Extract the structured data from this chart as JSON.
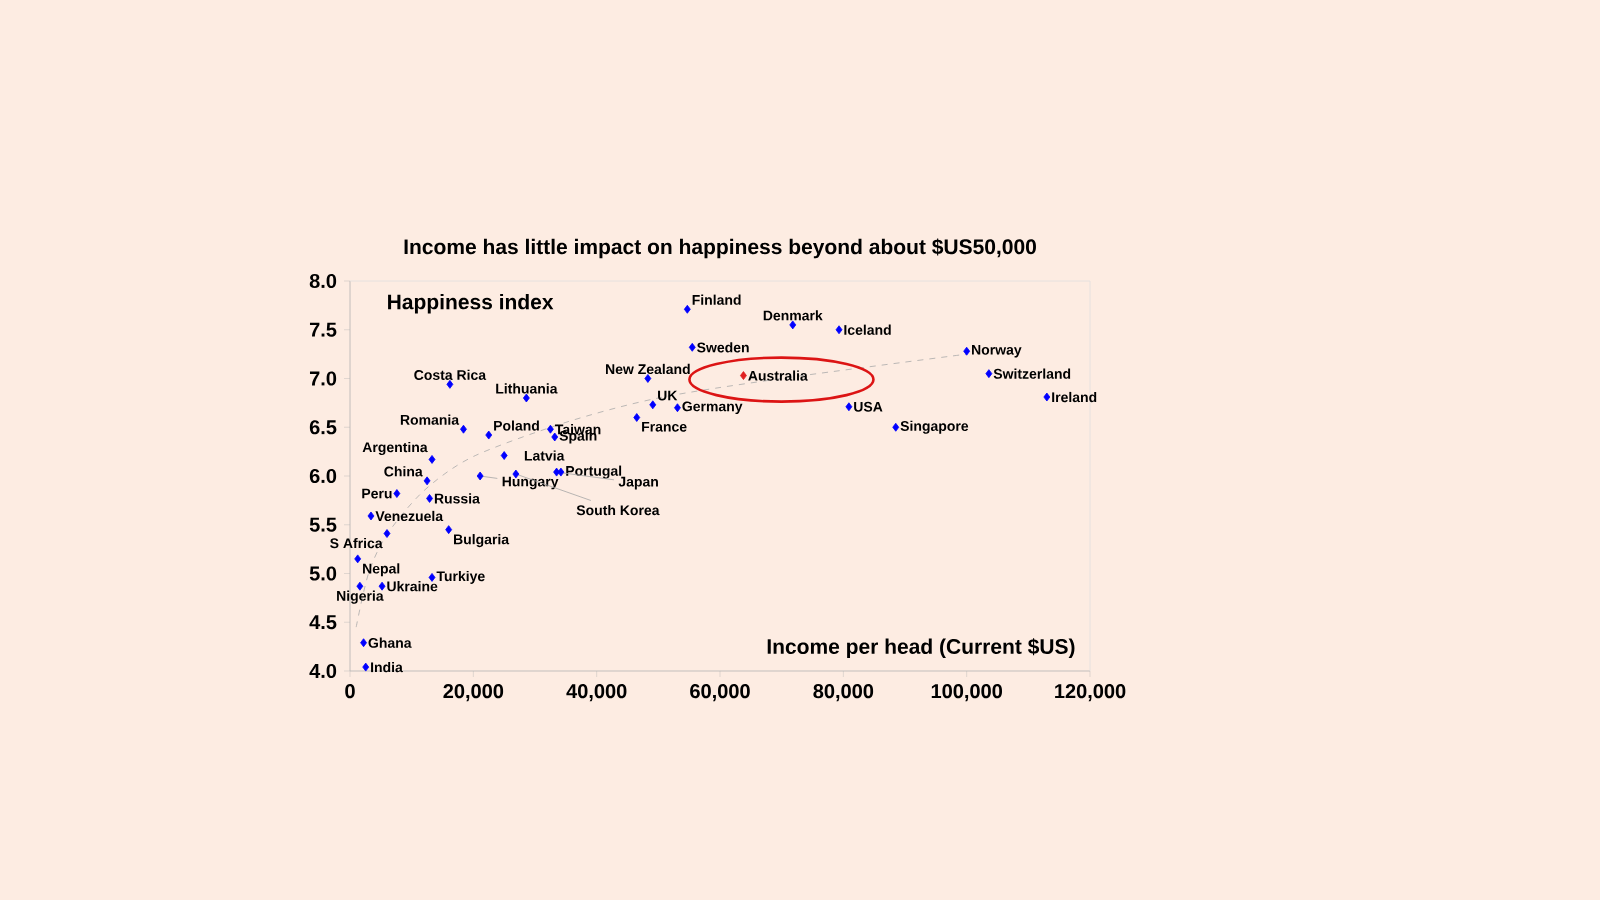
{
  "chart_data": {
    "type": "scatter",
    "title": "Income has little impact on happiness beyond about $US50,000",
    "xlabel": "Income per head (Current $US)",
    "ylabel": "Happiness index",
    "xlim": [
      0,
      120000
    ],
    "ylim": [
      4.0,
      8.0
    ],
    "xticks": [
      0,
      {
        "value": 20000,
        "label": "20,000"
      },
      {
        "value": 40000,
        "label": "40,000"
      },
      {
        "value": 60000,
        "label": "60,000"
      },
      {
        "value": 80000,
        "label": "80,000"
      },
      {
        "value": 100000,
        "label": "100,000"
      },
      {
        "value": 120000,
        "label": "120,000"
      }
    ],
    "yticks": [
      {
        "value": 4.0,
        "label": "4.0"
      },
      {
        "value": 4.5,
        "label": "4.5"
      },
      {
        "value": 5.0,
        "label": "5.0"
      },
      {
        "value": 5.5,
        "label": "5.5"
      },
      {
        "value": 6.0,
        "label": "6.0"
      },
      {
        "value": 6.5,
        "label": "6.5"
      },
      {
        "value": 7.0,
        "label": "7.0"
      },
      {
        "value": 7.5,
        "label": "7.5"
      },
      {
        "value": 8.0,
        "label": "8.0"
      }
    ],
    "grid": false,
    "series": [
      {
        "marker": "diamond",
        "color": "#0000ff",
        "x": [
          54700,
          71800,
          79300,
          55500,
          48300,
          63800,
          100000,
          103600,
          113000,
          49100,
          53100,
          46500,
          80900,
          88500,
          16200,
          28600,
          18400,
          22500,
          32500,
          33200,
          13300,
          25000,
          12500,
          21100,
          34200,
          33500,
          26900,
          7600,
          12900,
          3400,
          6000,
          1250,
          16000,
          13300,
          5200,
          1600,
          2200,
          2550
        ],
        "values": [
          7.71,
          7.55,
          7.5,
          7.32,
          7.0,
          7.03,
          7.28,
          7.05,
          6.81,
          6.73,
          6.7,
          6.6,
          6.71,
          6.5,
          6.94,
          6.8,
          6.48,
          6.42,
          6.48,
          6.4,
          6.17,
          6.21,
          5.95,
          6.0,
          6.04,
          6.04,
          6.02,
          5.82,
          5.77,
          5.59,
          5.41,
          5.15,
          5.45,
          4.96,
          4.87,
          4.87,
          4.29,
          4.04
        ],
        "colors": [
          "#0000ff",
          "#0000ff",
          "#0000ff",
          "#0000ff",
          "#0000ff",
          "#e02020",
          "#0000ff",
          "#0000ff",
          "#0000ff",
          "#0000ff",
          "#0000ff",
          "#0000ff",
          "#0000ff",
          "#0000ff",
          "#0000ff",
          "#0000ff",
          "#0000ff",
          "#0000ff",
          "#0000ff",
          "#0000ff",
          "#0000ff",
          "#0000ff",
          "#0000ff",
          "#0000ff",
          "#0000ff",
          "#0000ff",
          "#0000ff",
          "#0000ff",
          "#0000ff",
          "#0000ff",
          "#0000ff",
          "#0000ff",
          "#0000ff",
          "#0000ff",
          "#0000ff",
          "#0000ff",
          "#0000ff",
          "#0000ff"
        ]
      },
      {
        "type": "line",
        "color": "#aaaaaa",
        "line_style": "dashed",
        "x": [
          1000,
          3000,
          6000,
          12000,
          20000,
          35000,
          50000,
          70000,
          100000
        ],
        "values": [
          4.45,
          5.0,
          5.4,
          5.85,
          6.2,
          6.55,
          6.8,
          7.0,
          7.25
        ]
      }
    ],
    "annotations": [
      {
        "text": "Finland",
        "x": 54700,
        "y": 7.71
      },
      {
        "text": "Denmark",
        "x": 71800,
        "y": 7.55
      },
      {
        "text": "Iceland",
        "x": 79300,
        "y": 7.5
      },
      {
        "text": "Sweden",
        "x": 55500,
        "y": 7.32
      },
      {
        "text": "New Zealand",
        "x": 48300,
        "y": 7.0
      },
      {
        "text": "Australia",
        "x": 63800,
        "y": 7.03
      },
      {
        "text": "Norway",
        "x": 100000,
        "y": 7.28
      },
      {
        "text": "Switzerland",
        "x": 103600,
        "y": 7.05
      },
      {
        "text": "Ireland",
        "x": 113000,
        "y": 6.81
      },
      {
        "text": "UK",
        "x": 49100,
        "y": 6.73
      },
      {
        "text": "Germany",
        "x": 53100,
        "y": 6.7
      },
      {
        "text": "France",
        "x": 46500,
        "y": 6.6
      },
      {
        "text": "USA",
        "x": 80900,
        "y": 6.71
      },
      {
        "text": "Singapore",
        "x": 88500,
        "y": 6.5
      },
      {
        "text": "Costa Rica",
        "x": 16200,
        "y": 6.94
      },
      {
        "text": "Lithuania",
        "x": 28600,
        "y": 6.8
      },
      {
        "text": "Romania",
        "x": 18400,
        "y": 6.48
      },
      {
        "text": "Poland",
        "x": 22500,
        "y": 6.42
      },
      {
        "text": "Taiwan",
        "x": 32500,
        "y": 6.48
      },
      {
        "text": "Spain",
        "x": 33200,
        "y": 6.4
      },
      {
        "text": "Argentina",
        "x": 13300,
        "y": 6.17
      },
      {
        "text": "Latvia",
        "x": 25000,
        "y": 6.21
      },
      {
        "text": "China",
        "x": 12500,
        "y": 5.95
      },
      {
        "text": "Hungary",
        "x": 21100,
        "y": 6.0
      },
      {
        "text": "Portugal",
        "x": 34200,
        "y": 6.04
      },
      {
        "text": "Japan",
        "x": 33500,
        "y": 6.04
      },
      {
        "text": "South Korea",
        "x": 26900,
        "y": 6.02
      },
      {
        "text": "Peru",
        "x": 7600,
        "y": 5.82
      },
      {
        "text": "Russia",
        "x": 12900,
        "y": 5.77
      },
      {
        "text": "Venezuela",
        "x": 3400,
        "y": 5.59
      },
      {
        "text": "S Africa",
        "x": 6000,
        "y": 5.41
      },
      {
        "text": "Nepal",
        "x": 1250,
        "y": 5.15
      },
      {
        "text": "Bulgaria",
        "x": 16000,
        "y": 5.45
      },
      {
        "text": "Turkiye",
        "x": 13300,
        "y": 4.96
      },
      {
        "text": "Ukraine",
        "x": 5200,
        "y": 4.87
      },
      {
        "text": "Nigeria",
        "x": 1600,
        "y": 4.87
      },
      {
        "text": "Ghana",
        "x": 2200,
        "y": 4.29
      },
      {
        "text": "India",
        "x": 2550,
        "y": 4.04
      }
    ]
  }
}
